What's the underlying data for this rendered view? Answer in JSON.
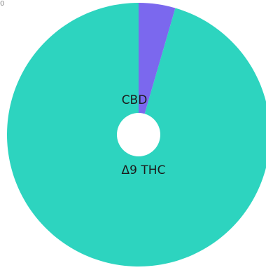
{
  "chart_data": {
    "type": "pie",
    "title": "",
    "corner_text": "0",
    "slices": [
      {
        "label": "Δ9 THC",
        "value": 95.5,
        "color": "#2dd4bf"
      },
      {
        "label": "CBD",
        "value": 4.5,
        "color": "#7b68ee"
      }
    ],
    "donut_hole": true,
    "legend": "none"
  }
}
